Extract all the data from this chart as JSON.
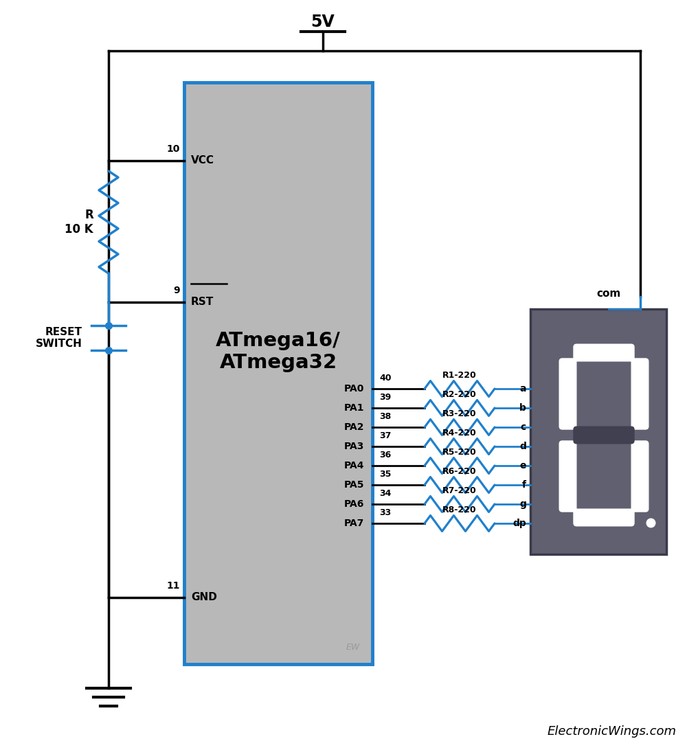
{
  "bg_color": "#ffffff",
  "ic_color": "#b8b8b8",
  "ic_border_color": "#2080cc",
  "wire_color": "#000000",
  "blue_wire_color": "#2080cc",
  "seven_seg_color": "#606070",
  "seg_on_color": "#ffffff",
  "seg_off_color": "#404050",
  "resistor_labels": [
    "R1-220",
    "R2-220",
    "R3-220",
    "R4-220",
    "R5-220",
    "R6-220",
    "R7-220",
    "R8-220"
  ],
  "pa_names": [
    "PA0",
    "PA1",
    "PA2",
    "PA3",
    "PA4",
    "PA5",
    "PA6",
    "PA7"
  ],
  "pa_nums": [
    "40",
    "39",
    "38",
    "37",
    "36",
    "35",
    "34",
    "33"
  ],
  "seg_names": [
    "a",
    "b",
    "c",
    "d",
    "e",
    "f",
    "g",
    "dp"
  ],
  "footer": "ElectronicWings.com"
}
